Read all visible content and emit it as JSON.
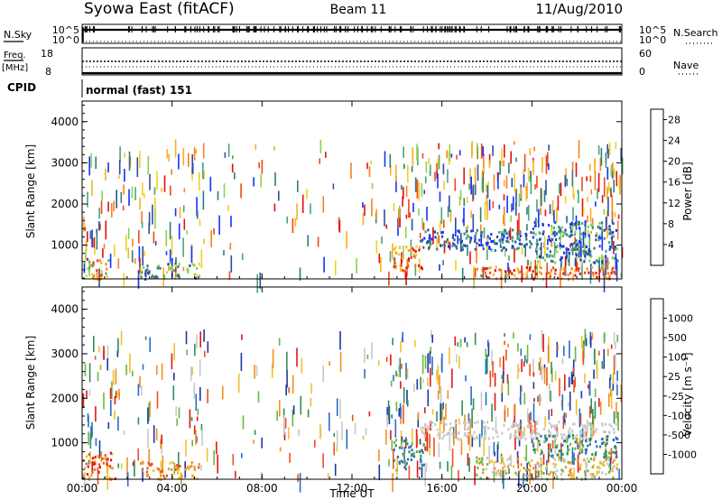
{
  "header": {
    "station": "Syowa East (fitACF)",
    "beam": "Beam 11",
    "date": "11/Aug/2010"
  },
  "status_panel": {
    "nsky_label": "N.Sky",
    "nsky_top": "10^5",
    "nsky_bottom": "10^0",
    "nsearch_top": "10^5",
    "nsearch_bottom": "10^0",
    "nsearch_label": "N.Search",
    "freq_label": "Freq.",
    "freq_unit": "[MHz]",
    "freq_top": "18",
    "freq_bottom": "8",
    "nave_top": "60",
    "nave_bottom": "0",
    "nave_label": "Nave",
    "cpid_label": "CPID",
    "cpid_value": "normal (fast) 151"
  },
  "chart_data": [
    {
      "type": "heatmap",
      "name": "power",
      "ylabel": "Slant Range [km]",
      "ylim": [
        180,
        4500
      ],
      "yticks": [
        "1000",
        "2000",
        "3000",
        "4000"
      ],
      "xticks": [
        "00:00",
        "04:00",
        "08:00",
        "12:00",
        "16:00",
        "20:00",
        "00:00"
      ],
      "colorbar_label": "Power [dB]",
      "colorbar_ticks": [
        "4",
        "8",
        "12",
        "16",
        "20",
        "24",
        "28"
      ],
      "colors": [
        "#1133ff",
        "#2c4fa0",
        "#2f7d77",
        "#48a57a",
        "#8fd04f",
        "#f0d020",
        "#f8b020",
        "#f88020",
        "#f04818",
        "#e21010"
      ],
      "regions": [
        {
          "t": [
            0.0,
            1.2
          ],
          "r": [
            200,
            700
          ],
          "level": [
            3,
            9
          ]
        },
        {
          "t": [
            2.5,
            5.2
          ],
          "r": [
            200,
            600
          ],
          "level": [
            1,
            5
          ]
        },
        {
          "t": [
            13.8,
            15.2
          ],
          "r": [
            400,
            1000
          ],
          "level": [
            5,
            9
          ]
        },
        {
          "t": [
            15.0,
            20.0
          ],
          "r": [
            900,
            1400
          ],
          "level": [
            0,
            3
          ]
        },
        {
          "t": [
            17.5,
            23.8
          ],
          "r": [
            200,
            500
          ],
          "level": [
            6,
            9
          ]
        },
        {
          "t": [
            20.0,
            23.8
          ],
          "r": [
            600,
            1600
          ],
          "level": [
            0,
            4
          ]
        }
      ]
    },
    {
      "type": "heatmap",
      "name": "velocity",
      "ylabel": "Slant Range [km]",
      "ylim": [
        180,
        4500
      ],
      "yticks": [
        "1000",
        "2000",
        "3000",
        "4000"
      ],
      "xticks": [
        "00:00",
        "04:00",
        "08:00",
        "12:00",
        "16:00",
        "20:00",
        "00:00"
      ],
      "xlabel": "Time UT",
      "colorbar_label": "Velocity [m s⁻¹]",
      "colorbar_ticks": [
        "1000",
        "500",
        "100",
        "25",
        "-25",
        "-100",
        "-500",
        "-1000"
      ],
      "colors": [
        "#1a3aa0",
        "#2b6cc8",
        "#2f8f5a",
        "#6ab840",
        "#c8c8c8",
        "#f0c030",
        "#f09020",
        "#f05020",
        "#e01818"
      ],
      "regions": [
        {
          "t": [
            0.0,
            1.5
          ],
          "r": [
            200,
            800
          ],
          "level": [
            5,
            8
          ]
        },
        {
          "t": [
            2.5,
            5.2
          ],
          "r": [
            200,
            600
          ],
          "level": [
            5,
            7
          ]
        },
        {
          "t": [
            13.8,
            15.2
          ],
          "r": [
            400,
            1100
          ],
          "level": [
            1,
            3
          ]
        },
        {
          "t": [
            15.0,
            23.8
          ],
          "r": [
            1100,
            1500
          ],
          "level": [
            4,
            4
          ]
        },
        {
          "t": [
            17.5,
            23.8
          ],
          "r": [
            200,
            700
          ],
          "level": [
            3,
            6
          ]
        },
        {
          "t": [
            20.0,
            23.8
          ],
          "r": [
            700,
            1200
          ],
          "level": [
            1,
            3
          ]
        }
      ]
    }
  ]
}
